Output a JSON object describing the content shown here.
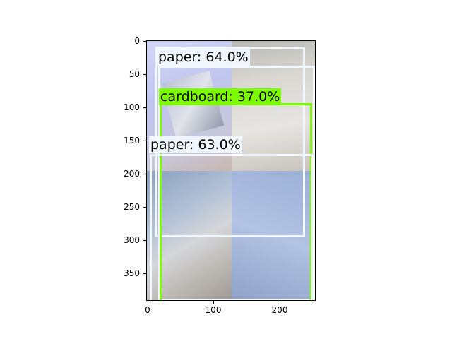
{
  "plot": {
    "detections": [
      {
        "label": "paper: 64.0%",
        "class": "paper"
      },
      {
        "label": "cardboard: 37.0%",
        "class": "cardboard"
      },
      {
        "label": "paper: 63.0%",
        "class": "paper"
      }
    ],
    "y_ticks": [
      "0",
      "50",
      "100",
      "150",
      "200",
      "250",
      "300",
      "350"
    ],
    "x_ticks": [
      "0",
      "100",
      "200"
    ]
  },
  "colors": {
    "paper_box": "#f1f8ff",
    "cardboard_box": "#7cfc00"
  }
}
